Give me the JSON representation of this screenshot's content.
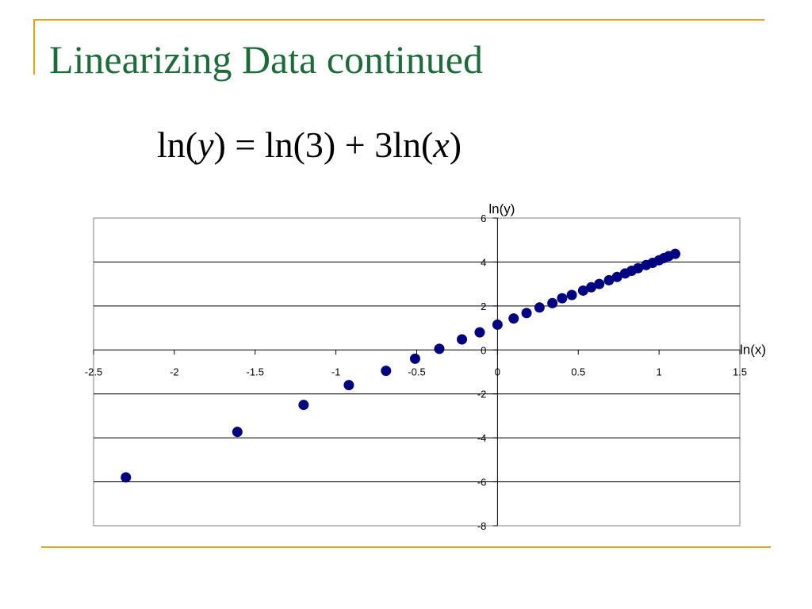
{
  "slide": {
    "title": "Linearizing Data continued",
    "equation": {
      "lhs_fn": "ln(",
      "lhs_var": "y",
      "lhs_close": ")",
      "equals": " = ",
      "term1": "ln(3)",
      "plus": " + ",
      "term2_fn": "3ln(",
      "term2_var": "x",
      "term2_close": ")"
    }
  },
  "colors": {
    "title": "#1e6b3a",
    "accent_rule": "#e8a317",
    "marker": "#000080",
    "grid": "#000000",
    "plot_border": "#808080"
  },
  "chart_data": {
    "type": "scatter",
    "xlabel": "ln(x)",
    "ylabel": "ln(y)",
    "xlim": [
      -2.5,
      1.5
    ],
    "ylim": [
      -8,
      6
    ],
    "x_ticks": [
      -2.5,
      -2,
      -1.5,
      -1,
      -0.5,
      0,
      0.5,
      1,
      1.5
    ],
    "x_tick_labels": [
      "-2.5",
      "-2",
      "-1.5",
      "-1",
      "-0.5",
      "0",
      "0.5",
      "1",
      "1.5"
    ],
    "y_ticks": [
      -8,
      -6,
      -4,
      -2,
      0,
      2,
      4,
      6
    ],
    "y_tick_labels": [
      "-8",
      "-6",
      "-4",
      "-2",
      "0",
      "2",
      "4",
      "6"
    ],
    "grid": "horizontal",
    "series": [
      {
        "points": [
          [
            -2.3,
            -5.8
          ],
          [
            -1.61,
            -3.73
          ],
          [
            -1.2,
            -2.5
          ],
          [
            -0.92,
            -1.6
          ],
          [
            -0.69,
            -0.95
          ],
          [
            -0.51,
            -0.4
          ],
          [
            -0.36,
            0.05
          ],
          [
            -0.22,
            0.48
          ],
          [
            -0.11,
            0.8
          ],
          [
            0.0,
            1.15
          ],
          [
            0.1,
            1.43
          ],
          [
            0.18,
            1.68
          ],
          [
            0.26,
            1.93
          ],
          [
            0.34,
            2.13
          ],
          [
            0.4,
            2.35
          ],
          [
            0.46,
            2.5
          ],
          [
            0.53,
            2.7
          ],
          [
            0.58,
            2.85
          ],
          [
            0.63,
            3.0
          ],
          [
            0.69,
            3.17
          ],
          [
            0.74,
            3.32
          ],
          [
            0.79,
            3.48
          ],
          [
            0.83,
            3.6
          ],
          [
            0.87,
            3.72
          ],
          [
            0.92,
            3.86
          ],
          [
            0.96,
            3.96
          ],
          [
            1.0,
            4.08
          ],
          [
            1.03,
            4.18
          ],
          [
            1.06,
            4.27
          ],
          [
            1.1,
            4.37
          ]
        ]
      }
    ]
  }
}
